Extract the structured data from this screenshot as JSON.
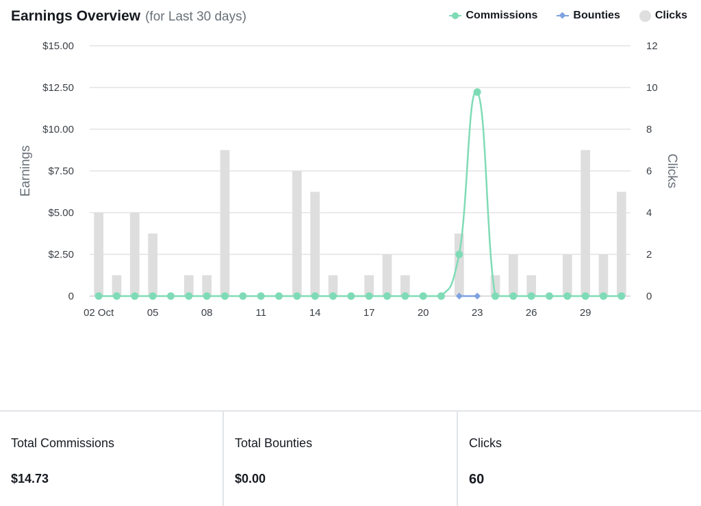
{
  "header": {
    "title": "Earnings Overview",
    "subtitle": "(for Last 30 days)"
  },
  "legend": [
    {
      "label": "Commissions",
      "icon": "line-dot-icon",
      "color": "#7fdbb6"
    },
    {
      "label": "Bounties",
      "icon": "line-diamond-icon",
      "color": "#7ea1e0"
    },
    {
      "label": "Clicks",
      "icon": "circle-icon",
      "color": "#dedede"
    }
  ],
  "chart_data": {
    "type": "bar",
    "title": "Earnings Overview",
    "subtitle": "(for Last 30 days)",
    "x": [
      "02 Oct",
      "03",
      "04",
      "05",
      "06",
      "07",
      "08",
      "09",
      "10",
      "11",
      "12",
      "13",
      "14",
      "15",
      "16",
      "17",
      "18",
      "19",
      "20",
      "21",
      "22",
      "23",
      "24",
      "25",
      "26",
      "27",
      "28",
      "29",
      "30",
      "31"
    ],
    "x_tick_labels": [
      "02 Oct",
      "05",
      "08",
      "11",
      "14",
      "17",
      "20",
      "23",
      "26",
      "29"
    ],
    "ylabel": "Earnings",
    "y2label": "Clicks",
    "ylim": [
      0,
      15
    ],
    "y2lim": [
      0,
      12
    ],
    "y_tick_labels": [
      "0",
      "$2.50",
      "$5.00",
      "$7.50",
      "$10.00",
      "$12.50",
      "$15.00"
    ],
    "y2_tick_labels": [
      "0",
      "2",
      "4",
      "6",
      "8",
      "10",
      "12"
    ],
    "grid": true,
    "legend_position": "top-right",
    "series": [
      {
        "name": "Clicks",
        "type": "bar",
        "axis": "right",
        "color": "#dedede",
        "values": [
          4,
          1,
          4,
          3,
          0,
          1,
          1,
          7,
          0,
          0,
          0,
          6,
          5,
          1,
          0,
          1,
          2,
          1,
          0,
          0,
          3,
          0,
          1,
          2,
          1,
          0,
          2,
          7,
          2,
          5
        ]
      },
      {
        "name": "Commissions",
        "type": "line",
        "axis": "left",
        "color": "#7fdbb6",
        "values": [
          0,
          0,
          0,
          0,
          0,
          0,
          0,
          0,
          0,
          0,
          0,
          0,
          0,
          0,
          0,
          0,
          0,
          0,
          0,
          0,
          2.5,
          12.23,
          0,
          0,
          0,
          0,
          0,
          0,
          0,
          0
        ]
      },
      {
        "name": "Bounties",
        "type": "line",
        "axis": "left",
        "color": "#7ea1e0",
        "values": [
          null,
          null,
          null,
          null,
          null,
          null,
          null,
          null,
          null,
          null,
          null,
          null,
          null,
          null,
          null,
          null,
          null,
          null,
          null,
          null,
          0,
          0,
          null,
          null,
          null,
          null,
          null,
          null,
          null,
          null
        ]
      }
    ]
  },
  "stats": [
    {
      "label": "Total Commissions",
      "value": "$14.73"
    },
    {
      "label": "Total Bounties",
      "value": "$0.00"
    },
    {
      "label": "Clicks",
      "value": "60"
    }
  ]
}
